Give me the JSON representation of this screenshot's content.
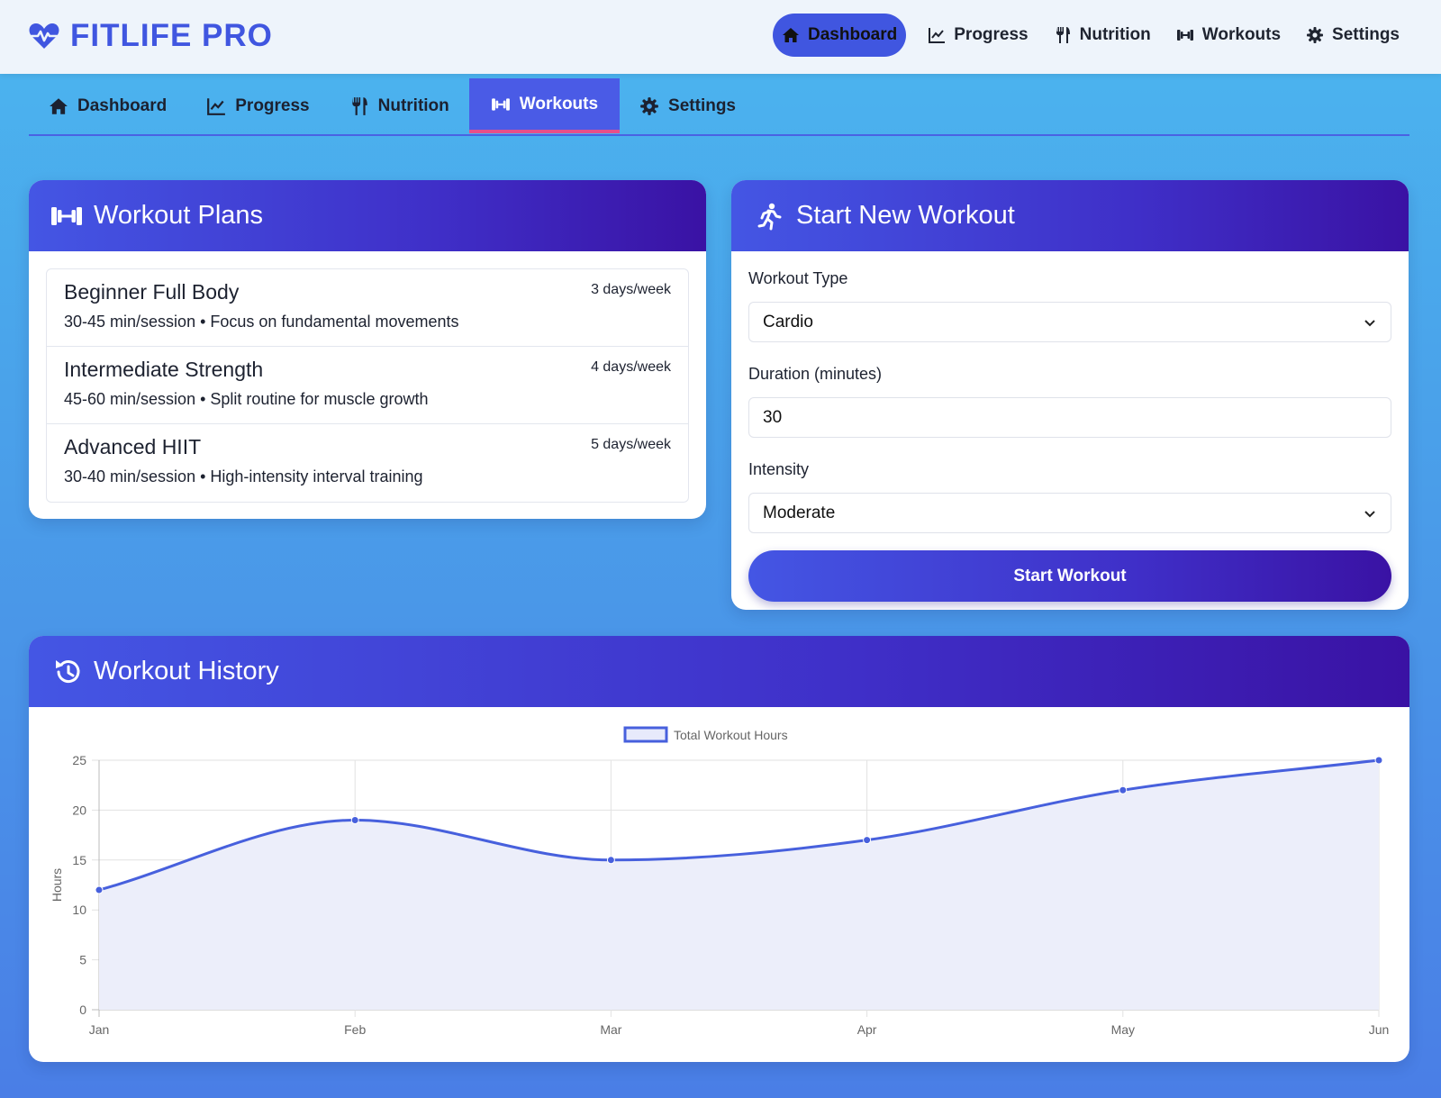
{
  "brand": {
    "name": "FITLIFE PRO",
    "icon": "heart-pulse-icon",
    "color": "#4056e0"
  },
  "topnav": [
    {
      "label": "Dashboard",
      "icon": "home-icon",
      "active": true
    },
    {
      "label": "Progress",
      "icon": "chart-line-icon",
      "active": false
    },
    {
      "label": "Nutrition",
      "icon": "utensils-icon",
      "active": false
    },
    {
      "label": "Workouts",
      "icon": "dumbbell-icon",
      "active": false
    },
    {
      "label": "Settings",
      "icon": "gear-icon",
      "active": false
    }
  ],
  "tabs": [
    {
      "label": "Dashboard",
      "icon": "home-icon",
      "active": false
    },
    {
      "label": "Progress",
      "icon": "chart-line-icon",
      "active": false
    },
    {
      "label": "Nutrition",
      "icon": "utensils-icon",
      "active": false
    },
    {
      "label": "Workouts",
      "icon": "dumbbell-icon",
      "active": true
    },
    {
      "label": "Settings",
      "icon": "gear-icon",
      "active": false
    }
  ],
  "plans": {
    "title": "Workout Plans",
    "items": [
      {
        "name": "Beginner Full Body",
        "desc": "30-45 min/session • Focus on fundamental movements",
        "freq": "3 days/week"
      },
      {
        "name": "Intermediate Strength",
        "desc": "45-60 min/session • Split routine for muscle growth",
        "freq": "4 days/week"
      },
      {
        "name": "Advanced HIIT",
        "desc": "30-40 min/session • High-intensity interval training",
        "freq": "5 days/week"
      }
    ]
  },
  "start": {
    "title": "Start New Workout",
    "type_label": "Workout Type",
    "type_value": "Cardio",
    "duration_label": "Duration (minutes)",
    "duration_value": "30",
    "intensity_label": "Intensity",
    "intensity_value": "Moderate",
    "button_label": "Start Workout"
  },
  "history": {
    "title": "Workout History"
  },
  "colors": {
    "accent": "#4056e0",
    "header_start": "#4456e4",
    "header_end": "#3a12a4",
    "line": "#4760dd",
    "fill": "#eceefa"
  },
  "chart_data": {
    "type": "line",
    "categories": [
      "Jan",
      "Feb",
      "Mar",
      "Apr",
      "May",
      "Jun"
    ],
    "series": [
      {
        "name": "Total Workout Hours",
        "values": [
          12,
          19,
          15,
          17,
          22,
          25
        ]
      }
    ],
    "xlabel": "",
    "ylabel": "Hours",
    "ylim": [
      0,
      25
    ],
    "yticks": [
      0,
      5,
      10,
      15,
      20,
      25
    ],
    "grid": true,
    "legend": "top-center",
    "filled": true,
    "smooth": true
  }
}
